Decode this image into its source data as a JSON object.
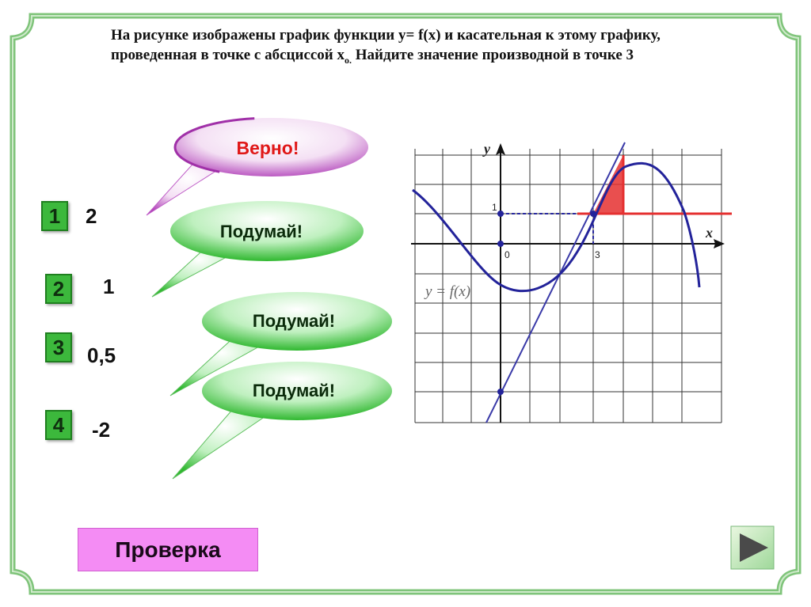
{
  "question": {
    "text_main": "На рисунке изображены график функции y= f(x) и касательная к этому графику, проведенная в точке с абсциссой x",
    "sub": "о.",
    "text_end": " Найдите значение производной в точке 3"
  },
  "answers": [
    {
      "number": "1",
      "value": "2"
    },
    {
      "number": "2",
      "value": "1"
    },
    {
      "number": "3",
      "value": "0,5"
    },
    {
      "number": "4",
      "value": "-2"
    }
  ],
  "feedback": {
    "correct": "Верно!",
    "think_1": "Подумай!",
    "think_2": "Подумай!",
    "think_3": "Подумай!"
  },
  "check_button": "Проверка",
  "graph": {
    "axis_x": "x",
    "axis_y": "y",
    "label_origin": "0",
    "label_one": "1",
    "label_three": "3",
    "function_label": "y = f(x)"
  },
  "colors": {
    "frame": "#7fc47a",
    "answer_badge": "#3cb83c",
    "check_button": "#f48cf4",
    "curve": "#23239a",
    "tangent_triangle": "#e53030",
    "correct_text": "#e01818",
    "think_text": "#0a2a0a"
  },
  "icons": {
    "next": "play-arrow-icon"
  }
}
